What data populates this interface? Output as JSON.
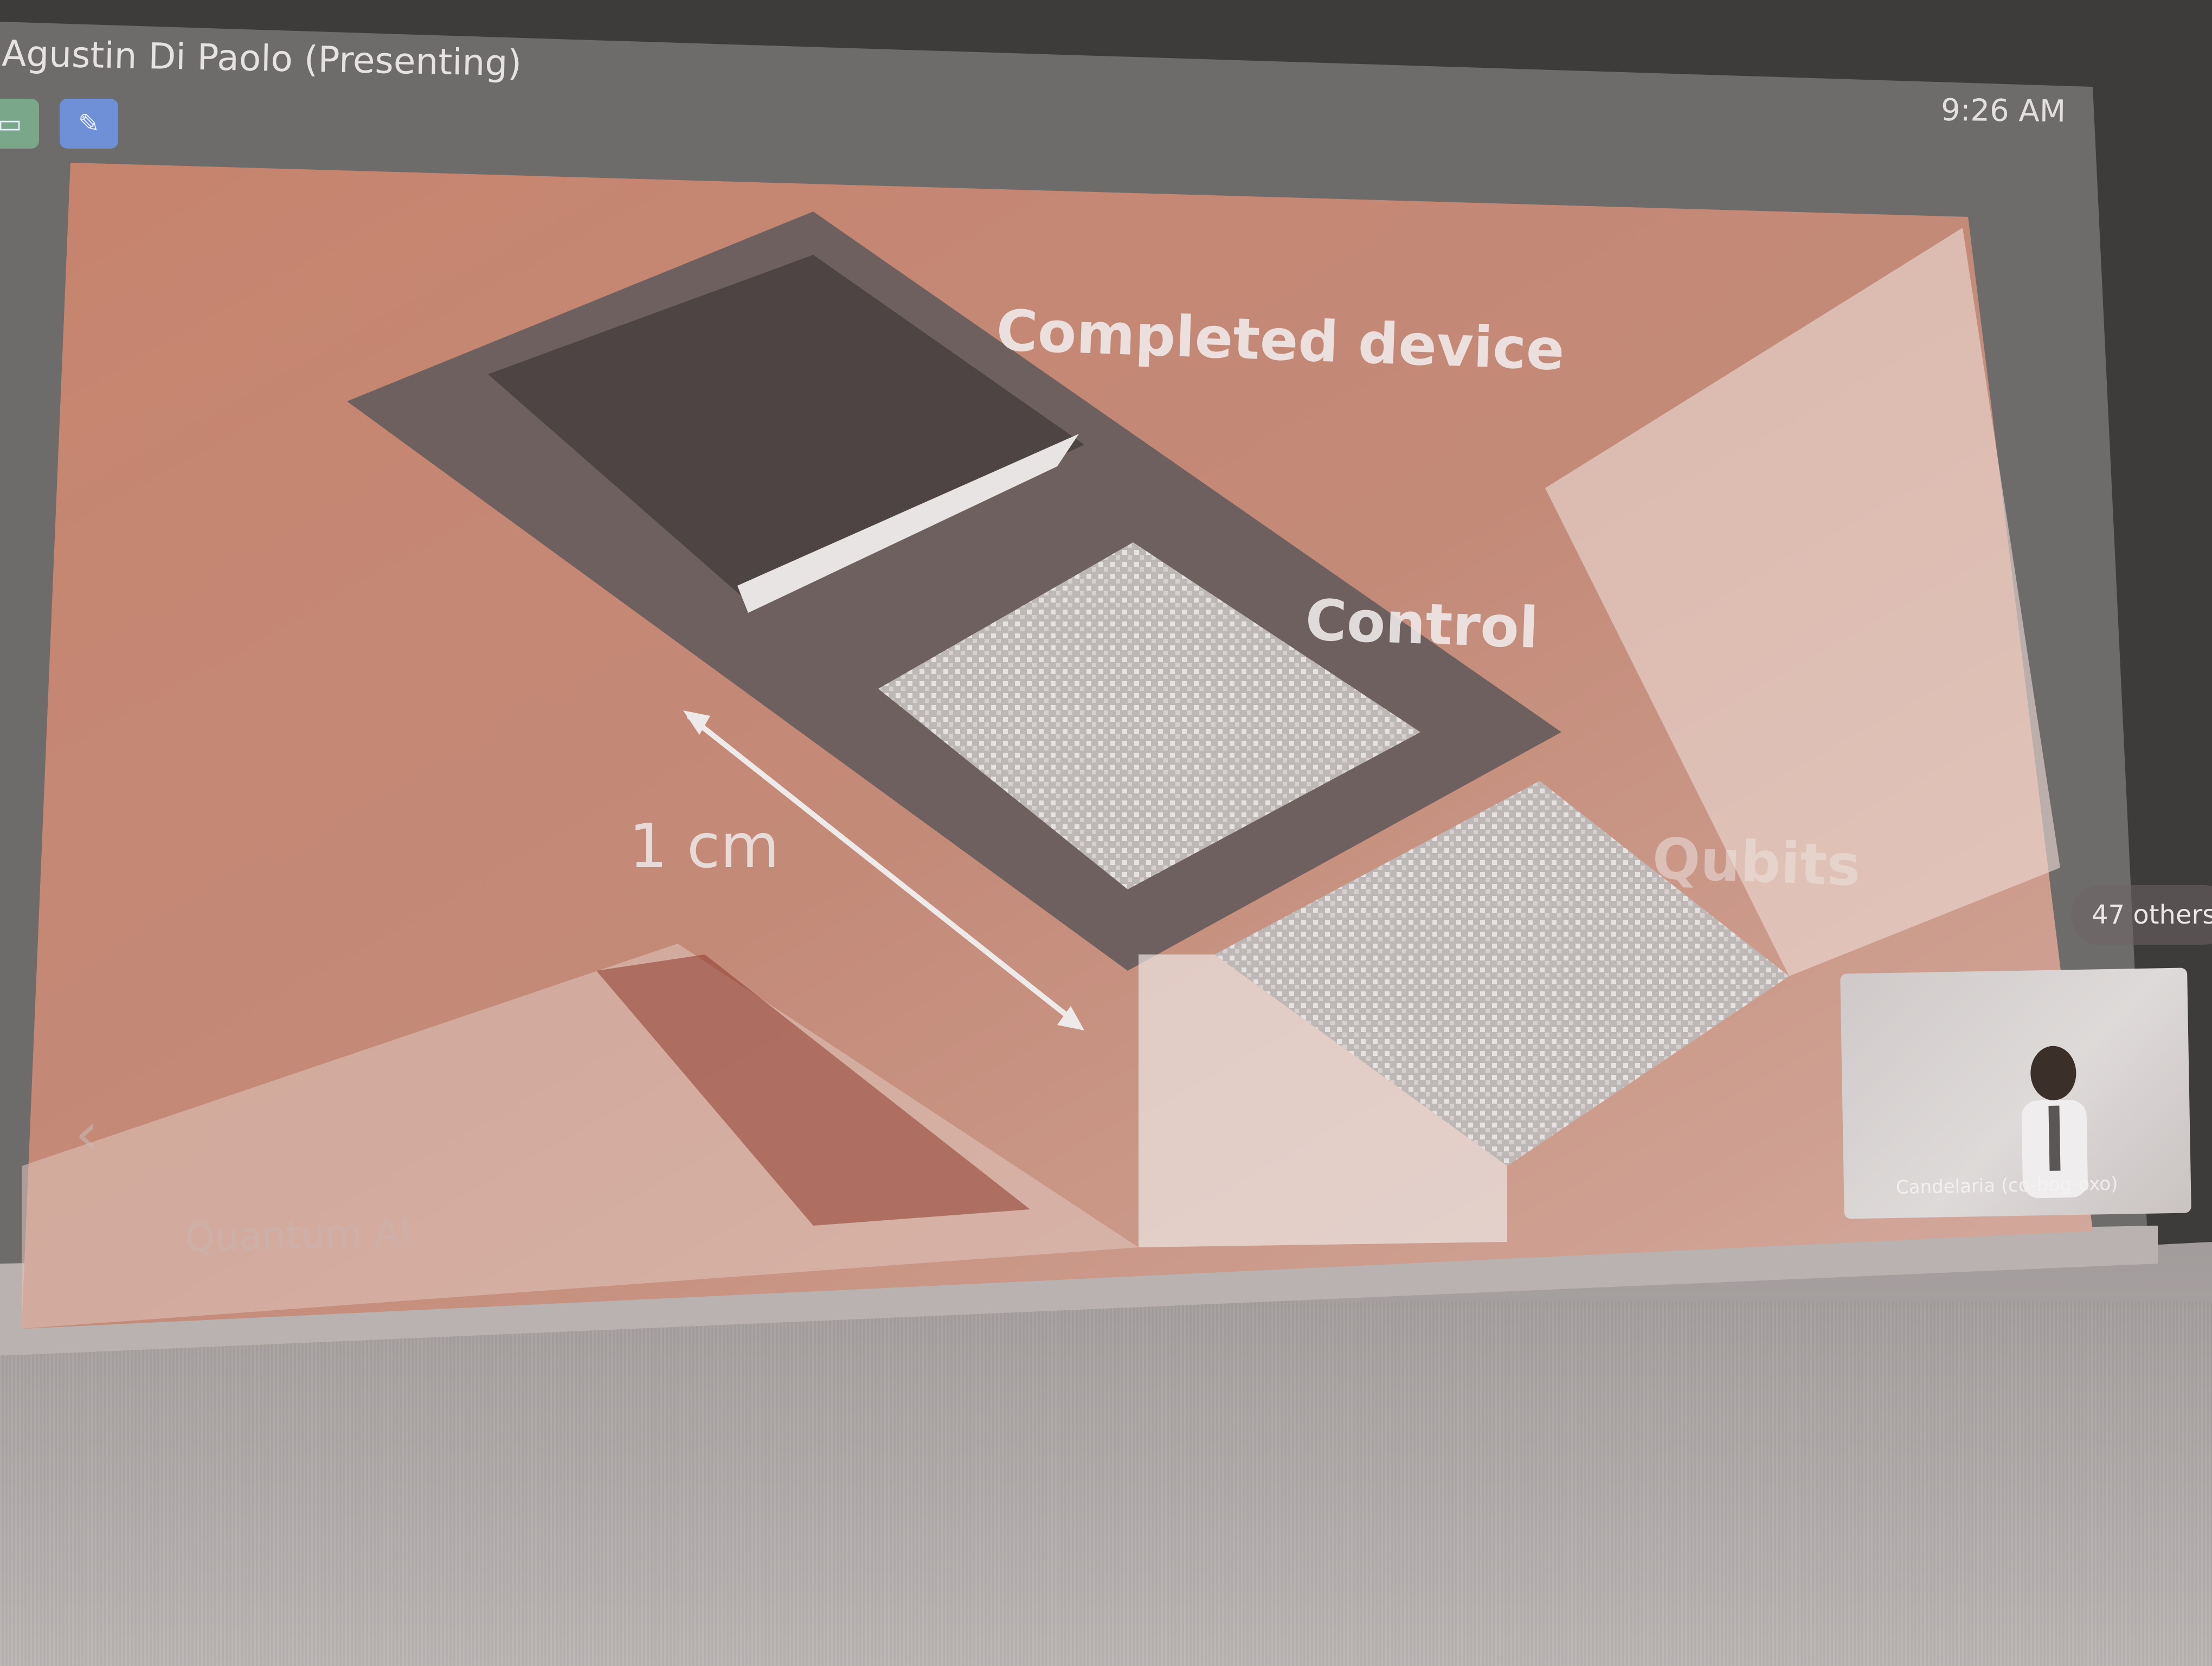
{
  "meeting": {
    "presenter_title": "Agustin Di Paolo (Presenting)",
    "clock": "9:26 AM",
    "others_count": "47 others",
    "self_view_name": "Candelaria (co-bog-oxo)"
  },
  "toolbar": {
    "left_icons": [
      {
        "name": "screen-share-icon",
        "color": "#7aa78a"
      },
      {
        "name": "pen-annotate-icon",
        "color": "#6f8fd6"
      }
    ]
  },
  "slide": {
    "labels": {
      "completed": "Completed device",
      "control": "Control",
      "qubits": "Qubits",
      "scale": "1 cm"
    },
    "footer_brand": "Quantum AI",
    "background_color": "#c7836c"
  }
}
